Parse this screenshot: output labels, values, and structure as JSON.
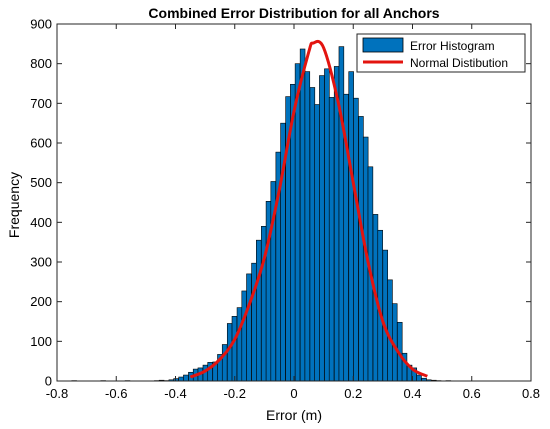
{
  "chart_data": {
    "type": "bar",
    "title": "Combined Error Distribution for all Anchors",
    "xlabel": "Error (m)",
    "ylabel": "Frequency",
    "xlim": [
      -0.8,
      0.8
    ],
    "ylim": [
      0,
      900
    ],
    "xticks": [
      "-0.8",
      "-0.6",
      "-0.4",
      "-0.2",
      "0",
      "0.2",
      "0.4",
      "0.6",
      "0.8"
    ],
    "yticks": [
      "0",
      "100",
      "200",
      "300",
      "400",
      "500",
      "600",
      "700",
      "800",
      "900"
    ],
    "grid": false,
    "legend_position": "top-right",
    "series": [
      {
        "name": "Error Histogram",
        "kind": "histogram",
        "color": "#0072BD",
        "bin_width": 0.0164,
        "bin_centers": [
          -0.742,
          -0.726,
          -0.709,
          -0.693,
          -0.676,
          -0.66,
          -0.644,
          -0.627,
          -0.611,
          -0.594,
          -0.578,
          -0.562,
          -0.545,
          -0.529,
          -0.512,
          -0.496,
          -0.48,
          -0.463,
          -0.447,
          -0.43,
          -0.414,
          -0.398,
          -0.381,
          -0.365,
          -0.348,
          -0.332,
          -0.316,
          -0.299,
          -0.283,
          -0.266,
          -0.25,
          -0.234,
          -0.217,
          -0.201,
          -0.184,
          -0.168,
          -0.152,
          -0.135,
          -0.119,
          -0.102,
          -0.086,
          -0.07,
          -0.053,
          -0.037,
          -0.02,
          -0.004,
          0.012,
          0.029,
          0.045,
          0.062,
          0.078,
          0.094,
          0.111,
          0.127,
          0.144,
          0.16,
          0.176,
          0.193,
          0.209,
          0.226,
          0.242,
          0.258,
          0.275,
          0.291,
          0.308,
          0.324,
          0.34,
          0.357,
          0.373,
          0.39,
          0.406,
          0.422,
          0.439,
          0.455,
          0.472,
          0.488,
          0.504,
          0.521,
          0.537,
          0.554,
          0.57,
          0.586,
          0.603,
          0.619,
          0.636,
          0.652
        ],
        "values": [
          1,
          0,
          0,
          0,
          0,
          0,
          1,
          0,
          0,
          0,
          0,
          1,
          0,
          0,
          0,
          0,
          0,
          1,
          2,
          1,
          3,
          6,
          10,
          15,
          22,
          30,
          33,
          40,
          47,
          48,
          67,
          92,
          145,
          163,
          185,
          227,
          270,
          297,
          355,
          390,
          453,
          503,
          577,
          650,
          717,
          748,
          800,
          837,
          780,
          740,
          697,
          770,
          787,
          715,
          793,
          843,
          723,
          780,
          713,
          667,
          615,
          540,
          420,
          380,
          330,
          255,
          195,
          148,
          70,
          40,
          33,
          15,
          7,
          3,
          2,
          1,
          0,
          1,
          0,
          0,
          0,
          0,
          0,
          0,
          0,
          0
        ]
      },
      {
        "name": "Normal Distibution",
        "kind": "fit",
        "color": "#E3140F",
        "x": [
          -0.35,
          -0.3,
          -0.25,
          -0.2,
          -0.15,
          -0.1,
          -0.05,
          0.0,
          0.05,
          0.065,
          0.1,
          0.15,
          0.2,
          0.25,
          0.3,
          0.35,
          0.4,
          0.45
        ],
        "values": [
          10,
          25,
          55,
          105,
          195,
          310,
          480,
          680,
          830,
          852,
          840,
          700,
          500,
          300,
          150,
          75,
          30,
          12
        ]
      }
    ]
  }
}
